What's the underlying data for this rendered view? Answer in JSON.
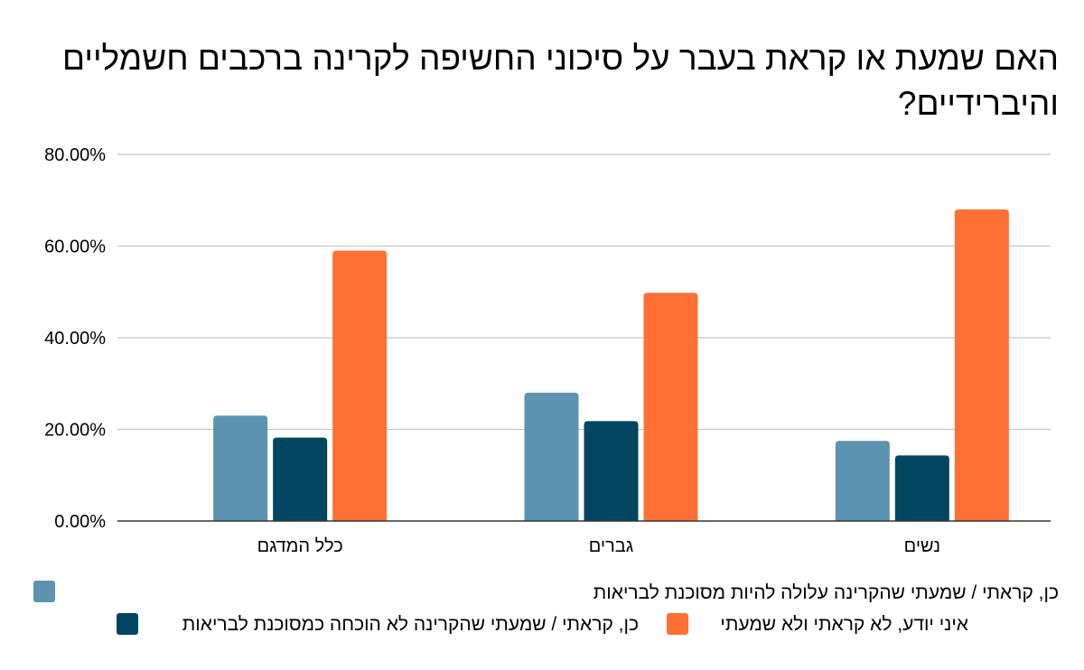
{
  "chart_data": {
    "type": "bar",
    "title": "האם שמעת או קראת בעבר על סיכוני החשיפה לקרינה ברכבים חשמליים והיברידיים?",
    "categories": [
      "כלל המדגם",
      "גברים",
      "נשים"
    ],
    "series": [
      {
        "name": "כן, קראתי / שמעתי שהקרינה עלולה להיות מסוכנת לבריאות",
        "color": "#5b93b0",
        "values": [
          23.0,
          28.0,
          17.5
        ]
      },
      {
        "name": "כן, קראתי / שמעתי שהקרינה לא הוכחה כמסוכנת לבריאות",
        "color": "#024661",
        "values": [
          18.2,
          21.8,
          14.3
        ]
      },
      {
        "name": "איני יודע, לא קראתי ולא שמעתי",
        "color": "#ff7035",
        "values": [
          59.0,
          49.8,
          68.0
        ]
      }
    ],
    "y_ticks": [
      "0.00%",
      "20.00%",
      "40.00%",
      "60.00%",
      "80.00%"
    ],
    "ylim": [
      0,
      80
    ],
    "grid": true,
    "legend_position": "bottom"
  }
}
